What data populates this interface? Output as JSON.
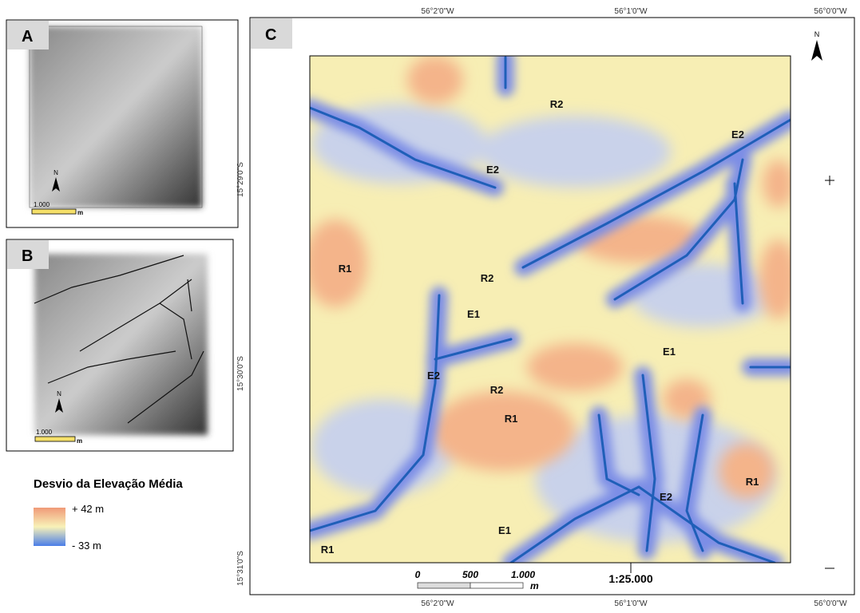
{
  "panels": [
    {
      "label": "A",
      "north": "N",
      "scale": "1.000",
      "scale_unit": "m"
    },
    {
      "label": "B",
      "north": "N",
      "scale": "1.000",
      "scale_unit": "m"
    },
    {
      "label": "C",
      "north": "N"
    }
  ],
  "legend": {
    "title": "Desvio da Elevação Média",
    "max_label": "+ 42 m",
    "min_label": "- 33 m"
  },
  "coordinates": {
    "top": [
      "56°2'0\"W",
      "56°1'0\"W",
      "56°0'0\"W"
    ],
    "bottom": [
      "56°2'0\"W",
      "56°1'0\"W",
      "56°0'0\"W"
    ],
    "left": [
      "15°29'0\"S",
      "15°30'0\"S",
      "15°31'0\"S"
    ]
  },
  "scale_bar": {
    "ticks": [
      "0",
      "500",
      "1.000"
    ],
    "unit": "m",
    "ratio": "1:25.000"
  },
  "map_labels": [
    "R2",
    "E2",
    "E2",
    "R1",
    "R2",
    "E1",
    "E1",
    "E2",
    "R2",
    "R1",
    "R1",
    "E2",
    "E1",
    "R1"
  ]
}
